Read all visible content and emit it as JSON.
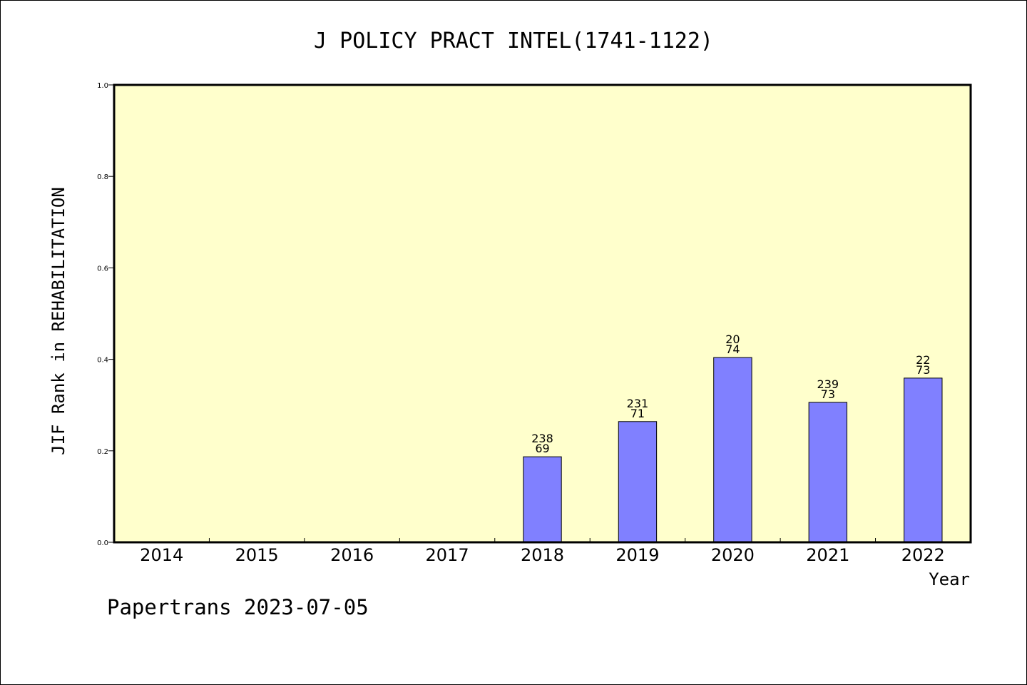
{
  "chart_data": {
    "type": "bar",
    "title": "J POLICY PRACT INTEL(1741-1122)",
    "xlabel": "Year",
    "ylabel": "JIF Rank in REHABILITATION",
    "categories": [
      "2014",
      "2015",
      "2016",
      "2017",
      "2018",
      "2019",
      "2020",
      "2021",
      "2022"
    ],
    "values": [
      null,
      null,
      null,
      null,
      0.187,
      0.264,
      0.404,
      0.306,
      0.359
    ],
    "bar_labels": [
      null,
      null,
      null,
      null,
      [
        "238",
        "69"
      ],
      [
        "231",
        "71"
      ],
      [
        "20",
        "74"
      ],
      [
        "239",
        "73"
      ],
      [
        "22",
        "73"
      ]
    ],
    "ylim": [
      0,
      1.0
    ],
    "yticks": [
      "0.0",
      "0.2",
      "0.4",
      "0.6",
      "0.8",
      "1.0"
    ],
    "grid": false,
    "colors": {
      "plot_background": "#ffffcc",
      "bar_fill": "#8080ff",
      "bar_stroke": "#000000"
    }
  },
  "footer": {
    "text": "Papertrans 2023-07-05"
  }
}
